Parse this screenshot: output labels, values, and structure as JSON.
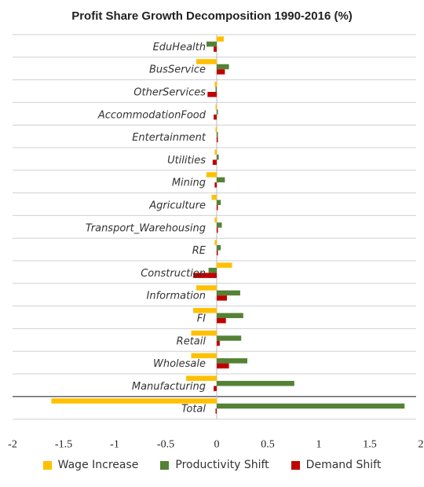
{
  "chart_data": {
    "type": "bar",
    "orientation": "horizontal",
    "title": "Profit Share Growth Decomposition 1990-2016 (%)",
    "categories": [
      "EduHealth",
      "BusService",
      "OtherServices",
      "AccommodationFood",
      "Entertainment",
      "Utilities",
      "Mining",
      "Agriculture",
      "Transport_Warehousing",
      "RE",
      "Construction",
      "Information",
      "FI",
      "Retail",
      "Wholesale",
      "Manufacturing",
      "Total"
    ],
    "series": [
      {
        "name": "Wage Increase",
        "color": "#FFC000",
        "values": [
          0.07,
          -0.2,
          -0.02,
          -0.01,
          -0.01,
          -0.02,
          -0.1,
          -0.05,
          -0.02,
          -0.02,
          0.15,
          -0.2,
          -0.23,
          -0.25,
          -0.25,
          -0.3,
          -1.62
        ]
      },
      {
        "name": "Productivity Shift",
        "color": "#548235",
        "values": [
          -0.1,
          0.12,
          -0.01,
          0.01,
          0.01,
          0.02,
          0.08,
          0.04,
          0.05,
          0.04,
          -0.08,
          0.23,
          0.26,
          0.24,
          0.3,
          0.76,
          1.84
        ]
      },
      {
        "name": "Demand Shift",
        "color": "#C00000",
        "values": [
          -0.03,
          0.08,
          -0.09,
          -0.03,
          0.0,
          -0.04,
          -0.02,
          0.01,
          0.01,
          0.0,
          -0.23,
          0.1,
          0.09,
          0.03,
          0.12,
          -0.03,
          -0.01
        ]
      }
    ],
    "xlim": [
      -2,
      2
    ],
    "xticks": [
      "-2",
      "-1.5",
      "-1",
      "-0.5",
      "0",
      "0.5",
      "1",
      "1.5",
      "2"
    ],
    "grid": "horizontal",
    "legend_position": "bottom"
  }
}
